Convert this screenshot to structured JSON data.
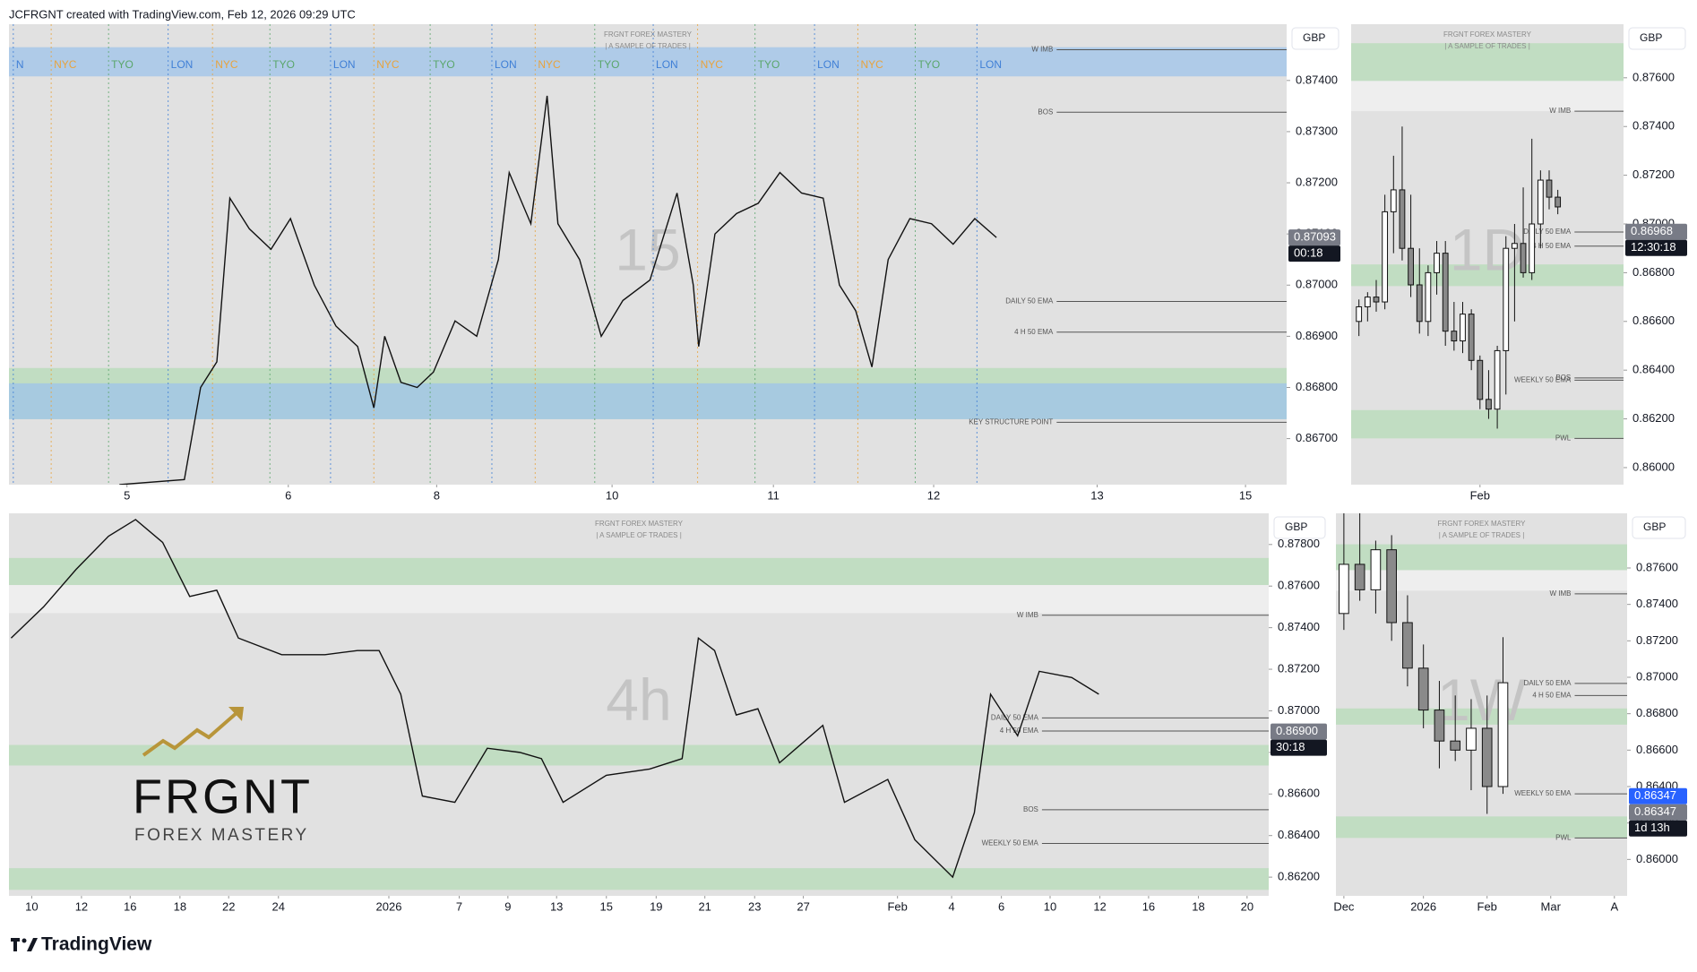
{
  "header": "JCFRGNT created with TradingView.com, Feb 12, 2026 09:29 UTC",
  "footer": "TradingView",
  "chart_data": [
    {
      "type": "line",
      "title": "FRGNT FOREX MASTERY",
      "subtitle": "| A SAMPLE OF TRADES |",
      "watermark": "15",
      "currency": "GBP",
      "color": "#111111",
      "xlim": [
        0,
        118
      ],
      "ylim": [
        0.8661,
        0.8751
      ],
      "xticks": [
        {
          "value": 10.9,
          "label": "5"
        },
        {
          "value": 25.8,
          "label": "6"
        },
        {
          "value": 39.5,
          "label": "8"
        },
        {
          "value": 55.7,
          "label": "10"
        },
        {
          "value": 70.6,
          "label": "11"
        },
        {
          "value": 85.4,
          "label": "12"
        },
        {
          "value": 100.5,
          "label": "13"
        },
        {
          "value": 114.2,
          "label": "15"
        }
      ],
      "yticks": [
        {
          "value": 0.867,
          "label": "0.86700"
        },
        {
          "value": 0.868,
          "label": "0.86800"
        },
        {
          "value": 0.869,
          "label": "0.86900"
        },
        {
          "value": 0.87,
          "label": "0.87000"
        },
        {
          "value": 0.871,
          "label": "0.87100"
        },
        {
          "value": 0.872,
          "label": "0.87200"
        },
        {
          "value": 0.873,
          "label": "0.87300"
        },
        {
          "value": 0.874,
          "label": "0.87400"
        }
      ],
      "x": [
        10.2,
        16.2,
        17.7,
        19.2,
        20.4,
        22.2,
        24.2,
        26,
        28.2,
        30.2,
        32.2,
        33.7,
        34.7,
        36.2,
        37.7,
        39.2,
        41.2,
        43.2,
        45.2,
        46.2,
        48.2,
        49.7,
        50.7,
        52.7,
        54.7,
        56.7,
        59.2,
        61.7,
        63.2,
        63.7,
        65.2,
        67.2,
        69.2,
        71.2,
        73.2,
        75.2,
        76.7,
        78.2,
        79.7,
        81.2,
        83.2,
        85.2,
        87.2,
        89.2,
        91.2
      ],
      "values": [
        0.8661,
        0.8662,
        0.868,
        0.8685,
        0.8717,
        0.8711,
        0.8707,
        0.8713,
        0.87,
        0.8692,
        0.8688,
        0.8676,
        0.869,
        0.8681,
        0.868,
        0.8683,
        0.8693,
        0.869,
        0.8705,
        0.8722,
        0.8712,
        0.8737,
        0.8712,
        0.8705,
        0.869,
        0.8697,
        0.8701,
        0.8718,
        0.87,
        0.8688,
        0.871,
        0.8714,
        0.8716,
        0.8722,
        0.8718,
        0.8717,
        0.87,
        0.8695,
        0.8684,
        0.8705,
        0.8713,
        0.8712,
        0.8708,
        0.8713,
        0.87093
      ],
      "zones": [
        {
          "from": 0.87465,
          "to": 0.87408,
          "color": "#9ec3ea"
        },
        {
          "from": 0.86838,
          "to": 0.86738,
          "color": "#b5dbb7"
        },
        {
          "from": 0.86808,
          "to": 0.86738,
          "color": "#9ec3ea"
        }
      ],
      "annotations": [
        {
          "text": "W IMB",
          "value": 0.8746
        },
        {
          "text": "BOS",
          "value": 0.87338
        },
        {
          "text": "DAILY 50 EMA",
          "value": 0.86968
        },
        {
          "text": "4 H 50 EMA",
          "value": 0.86908
        },
        {
          "text": "KEY STRUCTURE POINT",
          "value": 0.86732
        }
      ],
      "sessions": [
        {
          "label": "N",
          "x": 0.4,
          "color": "#3f7fd6"
        },
        {
          "label": "NYC",
          "x": 3.9,
          "color": "#e8a33d"
        },
        {
          "label": "TYO",
          "x": 9.2,
          "color": "#5aa66b"
        },
        {
          "label": "LON",
          "x": 14.7,
          "color": "#3f7fd6"
        },
        {
          "label": "NYC",
          "x": 18.8,
          "color": "#e8a33d"
        },
        {
          "label": "TYO",
          "x": 24.1,
          "color": "#5aa66b"
        },
        {
          "label": "LON",
          "x": 29.7,
          "color": "#3f7fd6"
        },
        {
          "label": "NYC",
          "x": 33.7,
          "color": "#e8a33d"
        },
        {
          "label": "TYO",
          "x": 38.9,
          "color": "#5aa66b"
        },
        {
          "label": "LON",
          "x": 44.6,
          "color": "#3f7fd6"
        },
        {
          "label": "NYC",
          "x": 48.6,
          "color": "#e8a33d"
        },
        {
          "label": "TYO",
          "x": 54.1,
          "color": "#5aa66b"
        },
        {
          "label": "LON",
          "x": 59.5,
          "color": "#3f7fd6"
        },
        {
          "label": "NYC",
          "x": 63.6,
          "color": "#e8a33d"
        },
        {
          "label": "TYO",
          "x": 68.9,
          "color": "#5aa66b"
        },
        {
          "label": "LON",
          "x": 74.4,
          "color": "#3f7fd6"
        },
        {
          "label": "NYC",
          "x": 78.4,
          "color": "#e8a33d"
        },
        {
          "label": "TYO",
          "x": 83.7,
          "color": "#5aa66b"
        },
        {
          "label": "LON",
          "x": 89.4,
          "color": "#3f7fd6"
        }
      ],
      "price_labels": [
        {
          "value": 0.87093,
          "label": "0.87093",
          "color": "#787b86"
        }
      ],
      "countdown": "00:18"
    },
    {
      "type": "candlestick",
      "title": "FRGNT FOREX MASTERY",
      "subtitle": "| A SAMPLE OF TRADES |",
      "watermark": "1D",
      "currency": "GBP",
      "up_color": "#ffffff",
      "down_color": "#8a8a8a",
      "xlim": [
        -0.9,
        30.6
      ],
      "ylim": [
        0.8593,
        0.8782
      ],
      "xticks": [
        {
          "value": 14,
          "label": "Feb"
        }
      ],
      "yticks": [
        {
          "value": 0.86,
          "label": "0.86000"
        },
        {
          "value": 0.862,
          "label": "0.86200"
        },
        {
          "value": 0.864,
          "label": "0.86400"
        },
        {
          "value": 0.866,
          "label": "0.86600"
        },
        {
          "value": 0.868,
          "label": "0.86800"
        },
        {
          "value": 0.87,
          "label": "0.87000"
        },
        {
          "value": 0.872,
          "label": "0.87200"
        },
        {
          "value": 0.874,
          "label": "0.87400"
        },
        {
          "value": 0.876,
          "label": "0.87600"
        }
      ],
      "x": [
        0,
        1,
        2,
        3,
        4,
        5,
        6,
        7,
        8,
        9,
        10,
        11,
        12,
        13,
        14,
        15,
        16,
        17,
        18,
        19,
        20,
        21,
        22,
        23
      ],
      "open": [
        0.866,
        0.8666,
        0.867,
        0.8668,
        0.8705,
        0.8714,
        0.869,
        0.8675,
        0.866,
        0.868,
        0.8688,
        0.8656,
        0.8652,
        0.8663,
        0.8644,
        0.8628,
        0.8624,
        0.8648,
        0.869,
        0.8692,
        0.868,
        0.87,
        0.8718,
        0.8711
      ],
      "high": [
        0.8669,
        0.8672,
        0.8677,
        0.8712,
        0.8728,
        0.874,
        0.8712,
        0.869,
        0.8683,
        0.8693,
        0.8693,
        0.8668,
        0.8668,
        0.8665,
        0.8646,
        0.864,
        0.865,
        0.8695,
        0.87,
        0.8715,
        0.8735,
        0.8722,
        0.8722,
        0.8714
      ],
      "low": [
        0.8654,
        0.866,
        0.8664,
        0.8665,
        0.8688,
        0.8685,
        0.867,
        0.8655,
        0.8654,
        0.8671,
        0.865,
        0.8648,
        0.8647,
        0.864,
        0.8624,
        0.862,
        0.8616,
        0.863,
        0.866,
        0.8678,
        0.8677,
        0.869,
        0.8706,
        0.8704
      ],
      "close": [
        0.8666,
        0.867,
        0.8668,
        0.8705,
        0.8714,
        0.869,
        0.8675,
        0.866,
        0.868,
        0.8688,
        0.8656,
        0.8652,
        0.8663,
        0.8644,
        0.8628,
        0.8624,
        0.8648,
        0.869,
        0.8692,
        0.868,
        0.87,
        0.8718,
        0.8711,
        0.8707
      ],
      "zones": [
        {
          "from": 0.87742,
          "to": 0.87587,
          "color": "#b5dbb7"
        },
        {
          "from": 0.87587,
          "to": 0.87463,
          "color": "#f2f2f2"
        },
        {
          "from": 0.86834,
          "to": 0.86745,
          "color": "#b5dbb7"
        },
        {
          "from": 0.86236,
          "to": 0.8612,
          "color": "#b5dbb7"
        }
      ],
      "annotations": [
        {
          "text": "W IMB",
          "value": 0.87463
        },
        {
          "text": "BOS",
          "value": 0.86368
        },
        {
          "text": "DAILY 50 EMA",
          "value": 0.86967
        },
        {
          "text": "4 H 50 EMA",
          "value": 0.86909
        },
        {
          "text": "WEEKLY 50 EMA",
          "value": 0.86359
        },
        {
          "text": "PWL",
          "value": 0.8612
        }
      ],
      "price_labels": [
        {
          "value": 0.86968,
          "label": "0.86968",
          "color": "#787b86"
        }
      ],
      "countdown": "12:30:18"
    },
    {
      "type": "line",
      "title": "FRGNT FOREX MASTERY",
      "subtitle": "| A SAMPLE OF TRADES |",
      "watermark": "4h",
      "currency": "GBP",
      "color": "#111111",
      "xlim": [
        0,
        116.4
      ],
      "ylim": [
        0.8611,
        0.8795
      ],
      "xticks": [
        {
          "value": 2.1,
          "label": "10"
        },
        {
          "value": 6.7,
          "label": "12"
        },
        {
          "value": 11.2,
          "label": "16"
        },
        {
          "value": 15.8,
          "label": "18"
        },
        {
          "value": 20.3,
          "label": "22"
        },
        {
          "value": 24.9,
          "label": "24"
        },
        {
          "value": 35.1,
          "label": "2026"
        },
        {
          "value": 41.6,
          "label": "7"
        },
        {
          "value": 46.1,
          "label": "9"
        },
        {
          "value": 50.6,
          "label": "13"
        },
        {
          "value": 55.2,
          "label": "15"
        },
        {
          "value": 59.8,
          "label": "19"
        },
        {
          "value": 64.3,
          "label": "21"
        },
        {
          "value": 68.9,
          "label": "23"
        },
        {
          "value": 73.4,
          "label": "27"
        },
        {
          "value": 82.1,
          "label": "Feb"
        },
        {
          "value": 87.1,
          "label": "4"
        },
        {
          "value": 91.7,
          "label": "6"
        },
        {
          "value": 96.2,
          "label": "10"
        },
        {
          "value": 100.8,
          "label": "12"
        },
        {
          "value": 105.3,
          "label": "16"
        },
        {
          "value": 109.9,
          "label": "18"
        },
        {
          "value": 114.4,
          "label": "20"
        }
      ],
      "yticks": [
        {
          "value": 0.862,
          "label": "0.86200"
        },
        {
          "value": 0.864,
          "label": "0.86400"
        },
        {
          "value": 0.866,
          "label": "0.86600"
        },
        {
          "value": 0.868,
          "label": "0.86800"
        },
        {
          "value": 0.87,
          "label": "0.87000"
        },
        {
          "value": 0.872,
          "label": "0.87200"
        },
        {
          "value": 0.874,
          "label": "0.87400"
        },
        {
          "value": 0.876,
          "label": "0.87600"
        },
        {
          "value": 0.878,
          "label": "0.87800"
        }
      ],
      "x": [
        0.2,
        3.2,
        6.2,
        9.2,
        11.7,
        14.2,
        16.7,
        19.2,
        21.2,
        25.2,
        29.2,
        32.2,
        34.2,
        36.2,
        38.2,
        41.2,
        44.2,
        47.2,
        49.2,
        51.2,
        55.2,
        59.2,
        62.2,
        63.7,
        65.2,
        67.2,
        69.2,
        71.2,
        75.2,
        77.2,
        81.2,
        83.7,
        87.2,
        89.2,
        90.7,
        93.2,
        95.2,
        98.2,
        100.7
      ],
      "values": [
        0.8735,
        0.875,
        0.8768,
        0.8784,
        0.8792,
        0.8781,
        0.8755,
        0.8758,
        0.8735,
        0.8727,
        0.8727,
        0.8729,
        0.8729,
        0.8708,
        0.8659,
        0.8656,
        0.8682,
        0.868,
        0.8677,
        0.8656,
        0.8669,
        0.8672,
        0.8677,
        0.8735,
        0.8729,
        0.8698,
        0.8701,
        0.8675,
        0.8693,
        0.8656,
        0.8667,
        0.8638,
        0.862,
        0.8651,
        0.8708,
        0.8688,
        0.8719,
        0.8716,
        0.8708
      ],
      "zones": [
        {
          "from": 0.87735,
          "to": 0.87605,
          "color": "#b5dbb7"
        },
        {
          "from": 0.87605,
          "to": 0.8747,
          "color": "#f2f2f2"
        },
        {
          "from": 0.86836,
          "to": 0.86737,
          "color": "#b5dbb7"
        },
        {
          "from": 0.86243,
          "to": 0.86139,
          "color": "#b5dbb7"
        }
      ],
      "annotations": [
        {
          "text": "W IMB",
          "value": 0.8746
        },
        {
          "text": "BOS",
          "value": 0.86524
        },
        {
          "text": "DAILY 50 EMA",
          "value": 0.86966
        },
        {
          "text": "4 H 50 EMA",
          "value": 0.86903
        },
        {
          "text": "WEEKLY 50 EMA",
          "value": 0.86362
        }
      ],
      "price_labels": [
        {
          "value": 0.869,
          "label": "0.86900",
          "color": "#787b86"
        }
      ],
      "countdown": "30:18",
      "logo": {
        "name": "FRGNT",
        "tagline": "FOREX MASTERY",
        "color": "#b8953a"
      }
    },
    {
      "type": "candlestick",
      "title": "FRGNT FOREX MASTERY",
      "subtitle": "| A SAMPLE OF TRADES |",
      "watermark": "1W",
      "currency": "GBP",
      "up_color": "#ffffff",
      "down_color": "#8a8a8a",
      "xlim": [
        -0.5,
        17.8
      ],
      "ylim": [
        0.858,
        0.879
      ],
      "xticks": [
        {
          "value": 0,
          "label": "Dec"
        },
        {
          "value": 5,
          "label": "2026"
        },
        {
          "value": 9,
          "label": "Feb"
        },
        {
          "value": 13,
          "label": "Mar"
        },
        {
          "value": 17,
          "label": "A"
        }
      ],
      "yticks": [
        {
          "value": 0.86,
          "label": "0.86000"
        },
        {
          "value": 0.862,
          "label": "0.86200"
        },
        {
          "value": 0.864,
          "label": "0.86400"
        },
        {
          "value": 0.866,
          "label": "0.86600"
        },
        {
          "value": 0.868,
          "label": "0.86800"
        },
        {
          "value": 0.87,
          "label": "0.87000"
        },
        {
          "value": 0.872,
          "label": "0.87200"
        },
        {
          "value": 0.874,
          "label": "0.87400"
        },
        {
          "value": 0.876,
          "label": "0.87600"
        }
      ],
      "x": [
        0,
        1,
        2,
        3,
        4,
        5,
        6,
        7,
        8,
        9,
        10
      ],
      "open": [
        0.8735,
        0.8762,
        0.8748,
        0.877,
        0.873,
        0.8705,
        0.8682,
        0.8665,
        0.866,
        0.8672,
        0.864
      ],
      "high": [
        0.879,
        0.879,
        0.8775,
        0.8778,
        0.8745,
        0.8718,
        0.8698,
        0.869,
        0.8688,
        0.869,
        0.8722
      ],
      "low": [
        0.8726,
        0.8742,
        0.8735,
        0.872,
        0.8695,
        0.8672,
        0.865,
        0.8654,
        0.8638,
        0.8625,
        0.8636
      ],
      "close": [
        0.8762,
        0.8748,
        0.877,
        0.873,
        0.8705,
        0.8682,
        0.8665,
        0.866,
        0.8672,
        0.864,
        0.8697
      ],
      "zones": [
        {
          "from": 0.8773,
          "to": 0.87588,
          "color": "#b5dbb7"
        },
        {
          "from": 0.87588,
          "to": 0.87475,
          "color": "#f2f2f2"
        },
        {
          "from": 0.86829,
          "to": 0.8674,
          "color": "#b5dbb7"
        },
        {
          "from": 0.86236,
          "to": 0.86118,
          "color": "#b5dbb7"
        }
      ],
      "annotations": [
        {
          "text": "W IMB",
          "value": 0.87458
        },
        {
          "text": "DAILY 50 EMA",
          "value": 0.86966
        },
        {
          "text": "4 H 50 EMA",
          "value": 0.869
        },
        {
          "text": "WEEKLY 50 EMA",
          "value": 0.8636
        },
        {
          "text": "PWL",
          "value": 0.86118
        }
      ],
      "price_labels": [
        {
          "value": 0.86347,
          "label": "0.86347",
          "color": "#2962ff"
        },
        {
          "value": 0.86347,
          "label": "0.86347",
          "color": "#787b86"
        }
      ],
      "countdown": "1d 13h"
    }
  ]
}
